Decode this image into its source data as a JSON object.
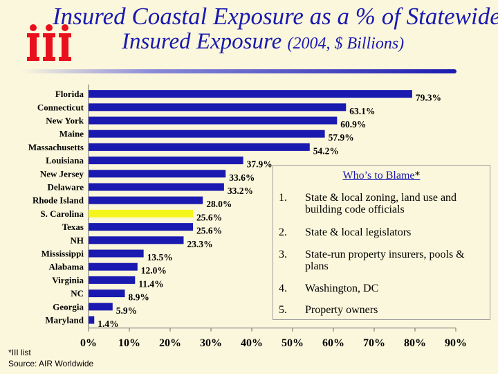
{
  "logo_text": "iii",
  "title": {
    "line1": "Insured Coastal Exposure as a % of Statewide",
    "line2_main": "Insured Exposure",
    "line2_sub": "(2004, $ Billions)"
  },
  "colors": {
    "bar": "#1a1ab0",
    "highlight_bar": "#f5f51e",
    "title": "#1a1ab0",
    "background": "#fbf7dc"
  },
  "chart_data": {
    "type": "bar",
    "orientation": "horizontal",
    "categories": [
      "Florida",
      "Connecticut",
      "New York",
      "Maine",
      "Massachusetts",
      "Louisiana",
      "New Jersey",
      "Delaware",
      "Rhode Island",
      "S. Carolina",
      "Texas",
      "NH",
      "Mississippi",
      "Alabama",
      "Virginia",
      "NC",
      "Georgia",
      "Maryland"
    ],
    "values": [
      79.3,
      63.1,
      60.9,
      57.9,
      54.2,
      37.9,
      33.6,
      33.2,
      28.0,
      25.6,
      25.6,
      23.3,
      13.5,
      12.0,
      11.4,
      8.9,
      5.9,
      1.4
    ],
    "value_labels": [
      "79.3%",
      "63.1%",
      "60.9%",
      "57.9%",
      "54.2%",
      "37.9%",
      "33.6%",
      "33.2%",
      "28.0%",
      "25.6%",
      "25.6%",
      "23.3%",
      "13.5%",
      "12.0%",
      "11.4%",
      "8.9%",
      "5.9%",
      "1.4%"
    ],
    "highlight": [
      "S. Carolina"
    ],
    "xlim": [
      0,
      90
    ],
    "xticks": [
      "0%",
      "10%",
      "20%",
      "30%",
      "40%",
      "50%",
      "60%",
      "70%",
      "80%",
      "90%"
    ],
    "title": "Insured Coastal Exposure as a % of Statewide Insured Exposure (2004, $ Billions)",
    "xlabel": "",
    "ylabel": ""
  },
  "blame_box": {
    "heading": "Who’s to Blame",
    "heading_star": "*",
    "items": [
      {
        "num": "1.",
        "text": "State & local zoning, land use and building code officials"
      },
      {
        "num": "2.",
        "text": "State & local legislators"
      },
      {
        "num": "3.",
        "text": "State-run property insurers, pools & plans"
      },
      {
        "num": "4.",
        "text": "Washington, DC"
      },
      {
        "num": "5.",
        "text": "Property owners"
      }
    ]
  },
  "footnote": {
    "line1": "*III list",
    "line2": "Source: AIR Worldwide"
  }
}
